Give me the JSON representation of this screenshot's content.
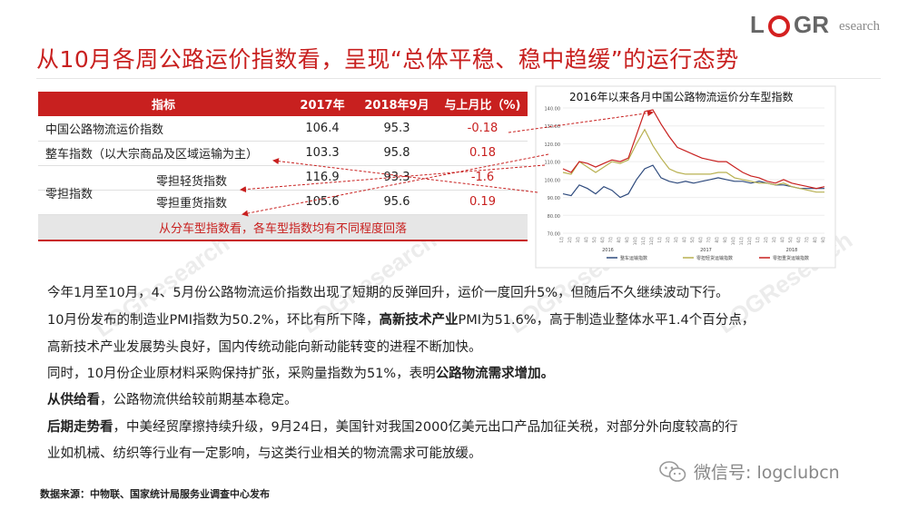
{
  "logo": {
    "l": "L",
    "gr": "GR",
    "suffix": "esearch"
  },
  "title": "从10月各周公路运价指数看，呈现“总体平稳、稳中趋缓”的运行态势",
  "table": {
    "headers": [
      "指标",
      "2017年",
      "2018年9月",
      "与上月比（%)"
    ],
    "rows": [
      {
        "name": "中国公路物流运价指数",
        "v2017": "106.4",
        "v2018": "95.3",
        "mom": "-0.18"
      },
      {
        "name": "整车指数（以大宗商品及区域运输为主）",
        "v2017": "103.3",
        "v2018": "95.8",
        "mom": "0.18"
      },
      {
        "group": "零担指数",
        "name": "零担轻货指数",
        "v2017": "116.9",
        "v2018": "93.3",
        "mom": "-1.6"
      },
      {
        "name": "零担重货指数",
        "v2017": "105.6",
        "v2018": "95.6",
        "mom": "0.19"
      }
    ],
    "note": "从分车型指数看，各车型指数均有不同程度回落"
  },
  "chart_data": {
    "type": "line",
    "title": "2016年以来各月中国公路物流运价分车型指数",
    "ylim": [
      70,
      140
    ],
    "yticks": [
      "70.00",
      "80.00",
      "90.00",
      "100.00",
      "110.00",
      "120.00",
      "130.00",
      "140.00"
    ],
    "year_labels": [
      "2016",
      "2017",
      "2018"
    ],
    "month_labels": [
      "1月",
      "2月",
      "3月",
      "4月",
      "5月",
      "6月",
      "7月",
      "8月",
      "9月",
      "10月",
      "11月",
      "12月",
      "1月",
      "2月",
      "3月",
      "4月",
      "5月",
      "6月",
      "7月",
      "8月",
      "9月",
      "10月",
      "11月",
      "12月",
      "1月",
      "2月",
      "3月",
      "4月",
      "5月",
      "6月",
      "7月",
      "8月",
      "9月"
    ],
    "series": [
      {
        "name": "整车运输指数",
        "color": "#2e4a7d",
        "values": [
          92,
          91,
          97,
          95,
          92,
          96,
          94,
          90,
          92,
          100,
          106,
          108,
          101,
          99,
          98,
          99,
          98,
          99,
          100,
          101,
          100,
          99,
          99,
          98,
          99,
          98,
          97,
          97,
          96,
          95,
          95,
          95,
          95
        ]
      },
      {
        "name": "零担轻货运输指数",
        "color": "#b8b050",
        "values": [
          104,
          103,
          110,
          107,
          104,
          107,
          110,
          109,
          111,
          120,
          128,
          119,
          112,
          106,
          104,
          103,
          103,
          103,
          103,
          104,
          104,
          101,
          100,
          99,
          98,
          98,
          97,
          98,
          96,
          95,
          94,
          93,
          93
        ]
      },
      {
        "name": "零担重货运输指数",
        "color": "#c8201f",
        "values": [
          106,
          104,
          110,
          109,
          107,
          109,
          111,
          110,
          112,
          125,
          138,
          139,
          131,
          124,
          118,
          116,
          114,
          112,
          111,
          110,
          110,
          107,
          104,
          102,
          101,
          99,
          98,
          100,
          98,
          97,
          96,
          95,
          96
        ]
      }
    ]
  },
  "paragraphs": [
    [
      {
        "t": "今年1月至10月，4、5月份公路物流运价指数出现了短期的反弹回升，运价一度回升5%，但随后不久继续波动下行。"
      }
    ],
    [
      {
        "t": "10月份发布的制造业PMI指数为50.2%，环比有所下降，"
      },
      {
        "t": "高新技术产业",
        "b": true
      },
      {
        "t": "PMI为51.6%，高于制造业整体水平1.4个百分点，"
      }
    ],
    [
      {
        "t": "高新技术产业发展势头良好，国内传统动能向新动能转变的进程不断加快。"
      }
    ],
    [
      {
        "t": "同时，10月份企业原材料采购保持扩张，采购量指数为51%，表明"
      },
      {
        "t": "公路物流需求增加。",
        "b": true
      }
    ],
    [
      {
        "t": "从供给看",
        "b": true
      },
      {
        "t": "，公路物流供给较前期基本稳定。"
      }
    ],
    [
      {
        "t": "后期走势看",
        "b": true
      },
      {
        "t": "，中美经贸摩擦持续升级，9月24日，美国针对我国2000亿美元出口产品加征关税，对部分外向度较高的行"
      }
    ],
    [
      {
        "t": "业如机械、纺织等行业有一定影响，与这类行业相关的物流需求可能放缓。"
      }
    ]
  ],
  "source": "数据来源：中物联、国家统计局服务业调查中心发布",
  "wechat": "微信号: logclubcn",
  "watermark": "LOGResearch"
}
